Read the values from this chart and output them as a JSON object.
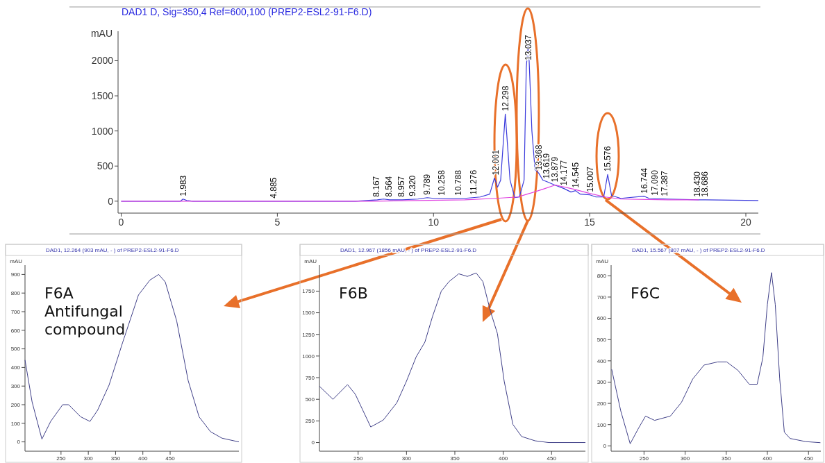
{
  "chart_data": [
    {
      "type": "line",
      "title": "DAD1 D, Sig=350,4 Ref=600,100 (PREP2-ESL2-91-F6.D)",
      "ylabel": "mAU",
      "xlim": [
        -0.1,
        20.4
      ],
      "xticks": [
        0,
        5,
        10,
        15,
        20
      ],
      "ylim": [
        -170,
        2420
      ],
      "yticks": [
        0,
        500,
        1000,
        1500,
        2000
      ],
      "series": [
        {
          "color": "#3b3bdc",
          "x": [
            0,
            1.9,
            1.98,
            2.1,
            2.3,
            4.8,
            5,
            7.5,
            8.2,
            8.4,
            8.6,
            9,
            9.5,
            9.8,
            10,
            10.5,
            11,
            11.5,
            11.8,
            11.95,
            12.05,
            12.15,
            12.298,
            12.45,
            12.6,
            12.75,
            12.9,
            12.97,
            13.037,
            13.15,
            13.25,
            13.368,
            13.5,
            13.619,
            13.879,
            14.177,
            14.4,
            14.545,
            14.7,
            15.007,
            15.2,
            15.45,
            15.576,
            15.7,
            16,
            16.744,
            16.9,
            17.5,
            18.5,
            20.4
          ],
          "values": [
            0,
            0,
            30,
            10,
            0,
            0,
            0,
            0,
            20,
            30,
            20,
            20,
            30,
            50,
            40,
            40,
            40,
            60,
            100,
            330,
            200,
            300,
            1240,
            300,
            50,
            60,
            300,
            1900,
            2280,
            1000,
            450,
            400,
            300,
            280,
            230,
            180,
            130,
            150,
            100,
            90,
            60,
            60,
            380,
            80,
            40,
            70,
            40,
            30,
            20,
            10
          ]
        },
        {
          "color": "#e040e0",
          "x": [
            0,
            8,
            11,
            12,
            12.7,
            13,
            13.5,
            13.9,
            14.5,
            15,
            15.5,
            16,
            17.5,
            18.5
          ],
          "values": [
            0,
            0,
            20,
            40,
            60,
            100,
            170,
            230,
            170,
            110,
            60,
            30,
            20,
            20
          ]
        }
      ],
      "annotations": [
        {
          "text": "1.983",
          "x": 1.983,
          "y": 30
        },
        {
          "text": "4.885",
          "x": 4.885,
          "y": 0
        },
        {
          "text": "8.167",
          "x": 8.167,
          "y": 20
        },
        {
          "text": "8.564",
          "x": 8.564,
          "y": 20
        },
        {
          "text": "8.957",
          "x": 8.957,
          "y": 20
        },
        {
          "text": "9.320",
          "x": 9.32,
          "y": 30
        },
        {
          "text": "9.789",
          "x": 9.789,
          "y": 50
        },
        {
          "text": "10.258",
          "x": 10.258,
          "y": 40
        },
        {
          "text": "10.788",
          "x": 10.788,
          "y": 40
        },
        {
          "text": "11.276",
          "x": 11.276,
          "y": 50
        },
        {
          "text": "12.001",
          "x": 12.001,
          "y": 330
        },
        {
          "text": "12.298",
          "x": 12.298,
          "y": 1240
        },
        {
          "text": "13.037",
          "x": 13.037,
          "y": 2280
        },
        {
          "text": "13.368",
          "x": 13.368,
          "y": 400
        },
        {
          "text": "13.619",
          "x": 13.619,
          "y": 280
        },
        {
          "text": "13.879",
          "x": 13.879,
          "y": 230
        },
        {
          "text": "14.177",
          "x": 14.177,
          "y": 180
        },
        {
          "text": "14.545",
          "x": 14.545,
          "y": 150
        },
        {
          "text": "15.007",
          "x": 15.007,
          "y": 90
        },
        {
          "text": "15.576",
          "x": 15.576,
          "y": 380
        },
        {
          "text": "16.744",
          "x": 16.744,
          "y": 70
        },
        {
          "text": "17.090",
          "x": 17.09,
          "y": 40
        },
        {
          "text": "17.387",
          "x": 17.387,
          "y": 30
        },
        {
          "text": "18.430",
          "x": 18.43,
          "y": 20
        },
        {
          "text": "18.686",
          "x": 18.686,
          "y": 20
        }
      ]
    },
    {
      "type": "line",
      "title": "DAD1, 12.264 (903 mAU, - ) of PREP2-ESL2-91-F6.D",
      "ylabel": "mAU",
      "xlim": [
        184,
        576
      ],
      "xticks": [
        250,
        300,
        350,
        400,
        450
      ],
      "ylim": [
        -50,
        950
      ],
      "yticks": [
        0,
        100,
        200,
        300,
        400,
        500,
        600,
        700,
        800,
        900
      ],
      "series": [
        {
          "color": "#404088",
          "x": [
            184,
            197,
            215,
            231,
            253,
            264,
            286,
            303,
            317,
            338,
            363,
            392,
            413,
            429,
            441,
            462,
            483,
            503,
            524,
            545,
            576
          ],
          "values": [
            440,
            215,
            15,
            110,
            200,
            200,
            135,
            110,
            170,
            305,
            535,
            790,
            870,
            900,
            860,
            650,
            330,
            135,
            55,
            20,
            0
          ]
        }
      ],
      "annotations": [
        "F6A Antifungal compound"
      ]
    },
    {
      "type": "line",
      "title": "DAD1, 12.967 (1856 mAU, - ) of PREP2-ESL2-91-F6.D",
      "ylabel": "mAU",
      "xlim": [
        210,
        485
      ],
      "xticks": [
        250,
        300,
        350,
        400,
        450
      ],
      "ylim": [
        -100,
        2050
      ],
      "yticks": [
        0,
        250,
        500,
        750,
        1000,
        1250,
        1500,
        1750
      ],
      "series": [
        {
          "color": "#404088",
          "x": [
            210,
            224,
            239,
            247,
            263,
            276,
            290,
            300,
            310,
            319,
            327,
            336,
            344,
            354,
            363,
            372,
            379,
            387,
            394,
            401,
            410,
            419,
            433,
            447,
            485
          ],
          "values": [
            650,
            500,
            670,
            560,
            180,
            260,
            460,
            710,
            990,
            1160,
            1460,
            1750,
            1860,
            1950,
            1920,
            1960,
            1860,
            1510,
            1260,
            710,
            210,
            70,
            20,
            0,
            0
          ]
        }
      ],
      "annotations": [
        "F6B"
      ]
    },
    {
      "type": "line",
      "title": "DAD1, 15.567 (807 mAU, - ) of PREP2-ESL2-91-F6.D",
      "ylabel": "mAU",
      "xlim": [
        210,
        465
      ],
      "xticks": [
        250,
        300,
        350,
        400,
        450
      ],
      "ylim": [
        -25,
        850
      ],
      "yticks": [
        0,
        100,
        200,
        300,
        400,
        500,
        600,
        700,
        800
      ],
      "series": [
        {
          "color": "#404088",
          "x": [
            210.7,
            221.7,
            233.2,
            243.6,
            251.9,
            262.9,
            282,
            295.6,
            309.3,
            323,
            339.6,
            350.6,
            364.3,
            378,
            387.6,
            394.5,
            400,
            405,
            409.6,
            415,
            420.6,
            427.5,
            446.7,
            464.5
          ],
          "values": [
            360,
            165,
            10,
            85,
            140,
            120,
            140,
            205,
            315,
            380,
            395,
            395,
            355,
            290,
            290,
            415,
            665,
            815,
            665,
            315,
            65,
            35,
            20,
            15
          ]
        }
      ],
      "annotations": [
        "F6C"
      ]
    }
  ]
}
